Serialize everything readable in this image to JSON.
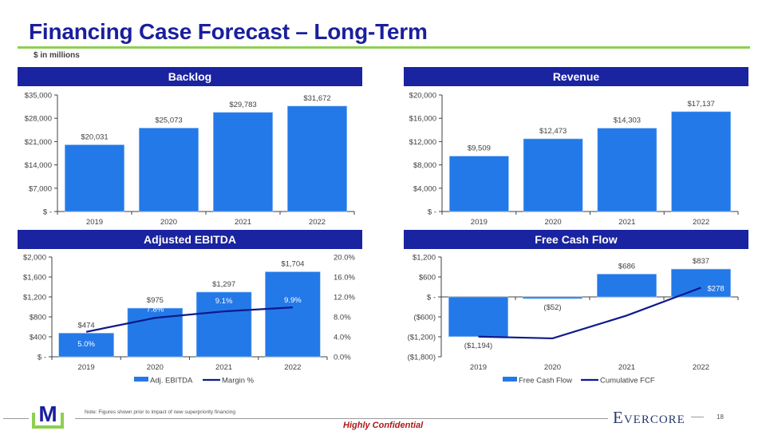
{
  "header": {
    "title": "Financing Case Forecast – Long-Term",
    "subtitle": "$ in millions"
  },
  "colors": {
    "title": "#1a1f9c",
    "header_bg": "#1a23a0",
    "bar": "#2479e8",
    "line": "#0d1a8c",
    "accent_rule": "#8dd050",
    "confidential": "#b01818"
  },
  "panels": {
    "backlog": "Backlog",
    "revenue": "Revenue",
    "ebitda": "Adjusted EBITDA",
    "fcf": "Free Cash Flow"
  },
  "chart_data": [
    {
      "id": "backlog",
      "type": "bar",
      "title": "Backlog",
      "categories": [
        "2019",
        "2020",
        "2021",
        "2022"
      ],
      "values": [
        20031,
        25073,
        29783,
        31672
      ],
      "value_labels": [
        "$20,031",
        "$25,073",
        "$29,783",
        "$31,672"
      ],
      "ylim": [
        0,
        35000
      ],
      "yticks": [
        0,
        7000,
        14000,
        21000,
        28000,
        35000
      ],
      "ytick_labels": [
        "$ -",
        "$7,000",
        "$14,000",
        "$21,000",
        "$28,000",
        "$35,000"
      ],
      "xlabel": "",
      "ylabel": "",
      "grid": false
    },
    {
      "id": "revenue",
      "type": "bar",
      "title": "Revenue",
      "categories": [
        "2019",
        "2020",
        "2021",
        "2022"
      ],
      "values": [
        9509,
        12473,
        14303,
        17137
      ],
      "value_labels": [
        "$9,509",
        "$12,473",
        "$14,303",
        "$17,137"
      ],
      "ylim": [
        0,
        20000
      ],
      "yticks": [
        0,
        4000,
        8000,
        12000,
        16000,
        20000
      ],
      "ytick_labels": [
        "$ -",
        "$4,000",
        "$8,000",
        "$12,000",
        "$16,000",
        "$20,000"
      ],
      "xlabel": "",
      "ylabel": "",
      "grid": false
    },
    {
      "id": "ebitda",
      "type": "bar",
      "title": "Adjusted EBITDA",
      "categories": [
        "2019",
        "2020",
        "2021",
        "2022"
      ],
      "series": [
        {
          "name": "Adj. EBITDA",
          "type": "bar",
          "axis": "left",
          "values": [
            474,
            975,
            1297,
            1704
          ],
          "value_labels": [
            "$474",
            "$975",
            "$1,297",
            "$1,704"
          ]
        },
        {
          "name": "Margin %",
          "type": "line",
          "axis": "right",
          "values": [
            5.0,
            7.8,
            9.1,
            9.9
          ],
          "value_labels": [
            "5.0%",
            "7.8%",
            "9.1%",
            "9.9%"
          ]
        }
      ],
      "ylim": [
        0,
        2000
      ],
      "yticks": [
        0,
        400,
        800,
        1200,
        1600,
        2000
      ],
      "ytick_labels": [
        "$ -",
        "$400",
        "$800",
        "$1,200",
        "$1,600",
        "$2,000"
      ],
      "y2lim": [
        0,
        20
      ],
      "y2ticks": [
        0,
        4,
        8,
        12,
        16,
        20
      ],
      "y2tick_labels": [
        "0.0%",
        "4.0%",
        "8.0%",
        "12.0%",
        "16.0%",
        "20.0%"
      ],
      "legend": "bottom",
      "xlabel": "",
      "ylabel": "",
      "grid": false
    },
    {
      "id": "fcf",
      "type": "bar",
      "title": "Free Cash Flow",
      "categories": [
        "2019",
        "2020",
        "2021",
        "2022"
      ],
      "series": [
        {
          "name": "Free Cash Flow",
          "type": "bar",
          "values": [
            -1194,
            -52,
            686,
            837
          ],
          "value_labels": [
            "($1,194)",
            "($52)",
            "$686",
            "$837"
          ]
        },
        {
          "name": "Cumulative FCF",
          "type": "line",
          "values": [
            -1194,
            -1246,
            -560,
            278
          ],
          "value_labels": [
            "",
            "",
            "",
            "$278"
          ]
        }
      ],
      "ylim": [
        -1800,
        1200
      ],
      "yticks": [
        -1800,
        -1200,
        -600,
        0,
        600,
        1200
      ],
      "ytick_labels": [
        "($1,800)",
        "($1,200)",
        "($600)",
        "$ -",
        "$600",
        "$1,200"
      ],
      "legend": "bottom",
      "xlabel": "",
      "ylabel": "",
      "grid": false
    }
  ],
  "footer": {
    "note": "Note: Figures shown prior to impact of new superpriority financing",
    "confidential": "Highly Confidential",
    "brand": "Evercore",
    "page": "18",
    "logo_letter": "M"
  }
}
